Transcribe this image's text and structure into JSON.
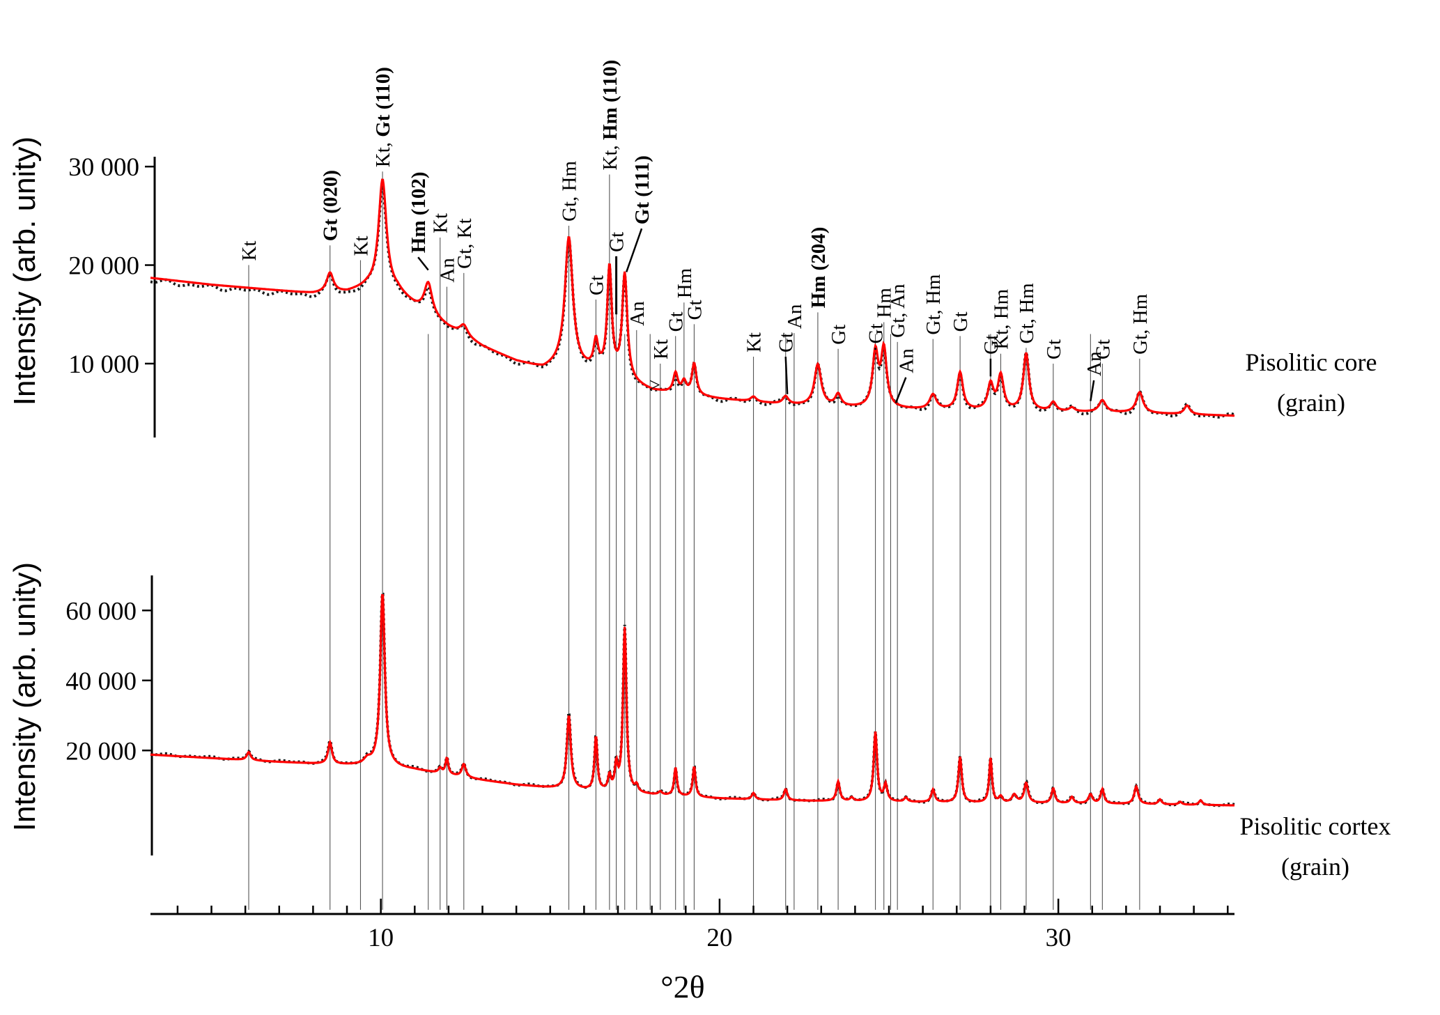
{
  "chart_data": {
    "type": "line",
    "xlabel": "°2θ",
    "xlim": [
      3.2,
      35.2
    ],
    "x_ticks": [
      {
        "value": 10,
        "label": "10"
      },
      {
        "value": 20,
        "label": "20"
      },
      {
        "value": 30,
        "label": "30"
      }
    ],
    "x_minor_ticks": [
      4,
      5,
      6,
      7,
      8,
      9,
      11,
      12,
      13,
      14,
      15,
      16,
      17,
      18,
      19,
      21,
      22,
      23,
      24,
      25,
      26,
      27,
      28,
      29,
      31,
      32,
      33,
      34,
      35
    ],
    "colors": {
      "observed": "#1a1a1a",
      "calculated": "#ff0000",
      "reference_lines": "#555555"
    },
    "reference_lines_x": [
      6.1,
      8.5,
      9.4,
      10.05,
      11.4,
      11.75,
      11.95,
      12.45,
      15.55,
      16.35,
      16.75,
      16.95,
      17.2,
      17.55,
      17.95,
      18.25,
      18.7,
      18.95,
      19.25,
      21.0,
      21.95,
      22.2,
      22.9,
      23.5,
      24.6,
      24.85,
      25.05,
      25.25,
      26.3,
      27.1,
      28.0,
      28.3,
      29.05,
      29.85,
      30.95,
      31.3,
      32.4
    ],
    "panels": [
      {
        "id": "core",
        "sample_label": [
          "Pisolitic core",
          "(grain)"
        ],
        "ylabel": "Intensity (arb. unity)",
        "ylim": [
          2500,
          31000
        ],
        "y_ticks": [
          {
            "value": 10000,
            "label": "10 000"
          },
          {
            "value": 20000,
            "label": "20 000"
          },
          {
            "value": 30000,
            "label": "30 000"
          }
        ],
        "background": [
          [
            3.2,
            18700
          ],
          [
            5,
            18000
          ],
          [
            7,
            17400
          ],
          [
            8,
            17100
          ],
          [
            9,
            17200
          ],
          [
            9.6,
            17700
          ],
          [
            10.5,
            17200
          ],
          [
            11,
            15800
          ],
          [
            11.5,
            14700
          ],
          [
            12,
            13600
          ],
          [
            13,
            11700
          ],
          [
            14,
            10200
          ],
          [
            14.8,
            9400
          ],
          [
            15.3,
            9700
          ],
          [
            16.5,
            9000
          ],
          [
            18,
            7200
          ],
          [
            20,
            6400
          ],
          [
            22,
            5800
          ],
          [
            24,
            5500
          ],
          [
            26,
            5300
          ],
          [
            28,
            5200
          ],
          [
            30,
            5100
          ],
          [
            32,
            5000
          ],
          [
            35.2,
            4700
          ]
        ],
        "peaks": [
          {
            "x": 8.5,
            "height": 2000,
            "width": 0.12
          },
          {
            "x": 10.05,
            "height": 11200,
            "width": 0.14
          },
          {
            "x": 11.4,
            "height": 3200,
            "width": 0.14
          },
          {
            "x": 12.45,
            "height": 1100,
            "width": 0.14
          },
          {
            "x": 15.55,
            "height": 13200,
            "width": 0.14
          },
          {
            "x": 16.35,
            "height": 2800,
            "width": 0.08
          },
          {
            "x": 16.75,
            "height": 10800,
            "width": 0.08
          },
          {
            "x": 17.2,
            "height": 10700,
            "width": 0.09
          },
          {
            "x": 18.7,
            "height": 2000,
            "width": 0.08
          },
          {
            "x": 18.95,
            "height": 1200,
            "width": 0.08
          },
          {
            "x": 19.25,
            "height": 3200,
            "width": 0.08
          },
          {
            "x": 21.0,
            "height": 500,
            "width": 0.1
          },
          {
            "x": 21.95,
            "height": 800,
            "width": 0.1
          },
          {
            "x": 22.9,
            "height": 4200,
            "width": 0.12
          },
          {
            "x": 23.5,
            "height": 1200,
            "width": 0.1
          },
          {
            "x": 24.6,
            "height": 5500,
            "width": 0.1
          },
          {
            "x": 24.85,
            "height": 5800,
            "width": 0.1
          },
          {
            "x": 26.3,
            "height": 1500,
            "width": 0.12
          },
          {
            "x": 27.1,
            "height": 3800,
            "width": 0.1
          },
          {
            "x": 28.0,
            "height": 2600,
            "width": 0.1
          },
          {
            "x": 28.3,
            "height": 3500,
            "width": 0.1
          },
          {
            "x": 29.05,
            "height": 5800,
            "width": 0.1
          },
          {
            "x": 29.85,
            "height": 900,
            "width": 0.1
          },
          {
            "x": 30.4,
            "height": 400,
            "width": 0.1
          },
          {
            "x": 31.3,
            "height": 1200,
            "width": 0.12
          },
          {
            "x": 32.4,
            "height": 2100,
            "width": 0.12
          },
          {
            "x": 33.8,
            "height": 900,
            "width": 0.1
          }
        ],
        "labels": [
          {
            "x": 6.1,
            "line_top": 20000,
            "text": "Kt",
            "bold": false
          },
          {
            "x": 8.5,
            "line_top": 22000,
            "text": "Gt (020)",
            "bold": true
          },
          {
            "x": 9.4,
            "line_top": 20500,
            "text": "Kt",
            "bold": false
          },
          {
            "x": 10.05,
            "line_top": 29500,
            "text": "Kt, ",
            "bold_text": "Gt (110)",
            "bold": false
          },
          {
            "x": 11.1,
            "line_top": 20800,
            "text": "Hm (102)",
            "bold": true,
            "leader_to": [
              11.4,
              19500
            ]
          },
          {
            "x": 11.75,
            "line_top": 22800,
            "text": "Kt",
            "bold": false
          },
          {
            "x": 11.95,
            "line_top": 17800,
            "text": "An",
            "bold": false
          },
          {
            "x": 12.45,
            "line_top": 19200,
            "text": "Gt, Kt",
            "bold": false
          },
          {
            "x": 15.55,
            "line_top": 24000,
            "text": "Gt, Hm",
            "bold": false
          },
          {
            "x": 16.35,
            "line_top": 16500,
            "text": "Gt",
            "bold": false
          },
          {
            "x": 16.75,
            "line_top": 29200,
            "text": "Kt, ",
            "bold_text": "Hm (110)",
            "bold": false
          },
          {
            "x": 16.95,
            "line_top": 20900,
            "text": "Gt",
            "bold": false,
            "line_weight": "heavy"
          },
          {
            "x": 17.7,
            "line_top": 23700,
            "text": "Gt (111)",
            "bold": true,
            "leader_to": [
              17.25,
              19300
            ]
          },
          {
            "x": 17.55,
            "line_top": 13400,
            "text": "An",
            "bold": false
          },
          {
            "x": 18.25,
            "line_top": 10000,
            "text": "Kt",
            "bold": false,
            "marker": ">"
          },
          {
            "x": 18.7,
            "line_top": 12800,
            "text": "Gt",
            "bold": false
          },
          {
            "x": 18.95,
            "line_top": 16200,
            "text": "Hm",
            "bold": false
          },
          {
            "x": 19.25,
            "line_top": 14000,
            "text": "Gt",
            "bold": false
          },
          {
            "x": 21.0,
            "line_top": 10700,
            "text": "Kt",
            "bold": false
          },
          {
            "x": 21.95,
            "line_top": 10700,
            "text": "Gt",
            "bold": false,
            "leader_to": [
              22.0,
              6900
            ]
          },
          {
            "x": 22.2,
            "line_top": 13100,
            "text": "An",
            "bold": false
          },
          {
            "x": 22.9,
            "line_top": 15200,
            "text": "Hm (204)",
            "bold": true
          },
          {
            "x": 23.5,
            "line_top": 11500,
            "text": "Gt",
            "bold": false
          },
          {
            "x": 24.6,
            "line_top": 11600,
            "text": "Gt",
            "bold": false,
            "leader_to": [
              24.6,
              11400
            ]
          },
          {
            "x": 24.85,
            "line_top": 14200,
            "text": "Hm",
            "bold": false
          },
          {
            "x": 25.25,
            "line_top": 12200,
            "text": "Gt, An",
            "bold": false
          },
          {
            "x": 25.5,
            "line_top": 8600,
            "text": "An",
            "bold": false,
            "leader_to": [
              25.2,
              6000
            ]
          },
          {
            "x": 26.3,
            "line_top": 12500,
            "text": "Gt, Hm",
            "bold": false
          },
          {
            "x": 27.1,
            "line_top": 12800,
            "text": "Gt",
            "bold": false
          },
          {
            "x": 28.0,
            "line_top": 10500,
            "text": "Gt",
            "bold": false,
            "leader_to": [
              28.0,
              8700
            ]
          },
          {
            "x": 28.3,
            "line_top": 11000,
            "text": "Kt, Hm",
            "bold": false
          },
          {
            "x": 29.05,
            "line_top": 11600,
            "text": "Gt, Hm",
            "bold": false
          },
          {
            "x": 29.85,
            "line_top": 10000,
            "text": "Gt",
            "bold": false
          },
          {
            "x": 31.05,
            "line_top": 8300,
            "text": "An",
            "bold": false,
            "leader_to": [
              30.95,
              6200
            ]
          },
          {
            "x": 31.3,
            "line_top": 10000,
            "text": "Gt",
            "bold": false
          },
          {
            "x": 32.4,
            "line_top": 10500,
            "text": "Gt, Hm",
            "bold": false
          }
        ]
      },
      {
        "id": "cortex",
        "sample_label": [
          "Pisolitic cortex",
          "(grain)"
        ],
        "ylabel": "Intensity (arb. unity)",
        "ylim": [
          -10000,
          70000
        ],
        "y_ticks": [
          {
            "value": 20000,
            "label": "20 000"
          },
          {
            "value": 40000,
            "label": "40 000"
          },
          {
            "value": 60000,
            "label": "60 000"
          }
        ],
        "background": [
          [
            3.2,
            18800
          ],
          [
            5,
            17800
          ],
          [
            7,
            16700
          ],
          [
            8.5,
            16000
          ],
          [
            10,
            15500
          ],
          [
            11,
            14500
          ],
          [
            12,
            13000
          ],
          [
            13,
            11500
          ],
          [
            14,
            10200
          ],
          [
            15,
            9300
          ],
          [
            16,
            8600
          ],
          [
            18,
            7300
          ],
          [
            20,
            6300
          ],
          [
            22,
            5700
          ],
          [
            24,
            5400
          ],
          [
            26,
            5200
          ],
          [
            28,
            5000
          ],
          [
            30,
            4900
          ],
          [
            32,
            4700
          ],
          [
            35.2,
            4300
          ]
        ],
        "peaks": [
          {
            "x": 6.1,
            "height": 2300,
            "width": 0.07
          },
          {
            "x": 8.5,
            "height": 6200,
            "width": 0.07
          },
          {
            "x": 9.6,
            "height": 1500,
            "width": 0.12
          },
          {
            "x": 10.05,
            "height": 49500,
            "width": 0.08
          },
          {
            "x": 11.75,
            "height": 1500,
            "width": 0.06
          },
          {
            "x": 11.95,
            "height": 4600,
            "width": 0.05
          },
          {
            "x": 12.45,
            "height": 3700,
            "width": 0.07
          },
          {
            "x": 15.55,
            "height": 21000,
            "width": 0.07
          },
          {
            "x": 16.35,
            "height": 15400,
            "width": 0.05
          },
          {
            "x": 16.75,
            "height": 4200,
            "width": 0.05
          },
          {
            "x": 16.95,
            "height": 7000,
            "width": 0.05
          },
          {
            "x": 17.2,
            "height": 47000,
            "width": 0.06
          },
          {
            "x": 17.55,
            "height": 1800,
            "width": 0.05
          },
          {
            "x": 18.25,
            "height": 900,
            "width": 0.06
          },
          {
            "x": 18.7,
            "height": 8000,
            "width": 0.05
          },
          {
            "x": 19.25,
            "height": 8600,
            "width": 0.05
          },
          {
            "x": 21.0,
            "height": 1800,
            "width": 0.06
          },
          {
            "x": 21.95,
            "height": 3200,
            "width": 0.06
          },
          {
            "x": 23.5,
            "height": 5600,
            "width": 0.06
          },
          {
            "x": 23.9,
            "height": 1000,
            "width": 0.06
          },
          {
            "x": 24.6,
            "height": 19800,
            "width": 0.06
          },
          {
            "x": 24.9,
            "height": 4800,
            "width": 0.06
          },
          {
            "x": 25.5,
            "height": 1200,
            "width": 0.06
          },
          {
            "x": 26.3,
            "height": 3600,
            "width": 0.06
          },
          {
            "x": 27.1,
            "height": 13000,
            "width": 0.06
          },
          {
            "x": 28.0,
            "height": 12700,
            "width": 0.05
          },
          {
            "x": 28.3,
            "height": 1700,
            "width": 0.06
          },
          {
            "x": 28.7,
            "height": 2300,
            "width": 0.08
          },
          {
            "x": 29.05,
            "height": 5700,
            "width": 0.07
          },
          {
            "x": 29.85,
            "height": 4200,
            "width": 0.06
          },
          {
            "x": 30.4,
            "height": 1800,
            "width": 0.06
          },
          {
            "x": 30.95,
            "height": 2600,
            "width": 0.07
          },
          {
            "x": 31.3,
            "height": 4100,
            "width": 0.06
          },
          {
            "x": 32.3,
            "height": 5000,
            "width": 0.07
          },
          {
            "x": 33.0,
            "height": 1400,
            "width": 0.06
          },
          {
            "x": 33.6,
            "height": 800,
            "width": 0.06
          },
          {
            "x": 34.2,
            "height": 1300,
            "width": 0.06
          }
        ]
      }
    ]
  }
}
